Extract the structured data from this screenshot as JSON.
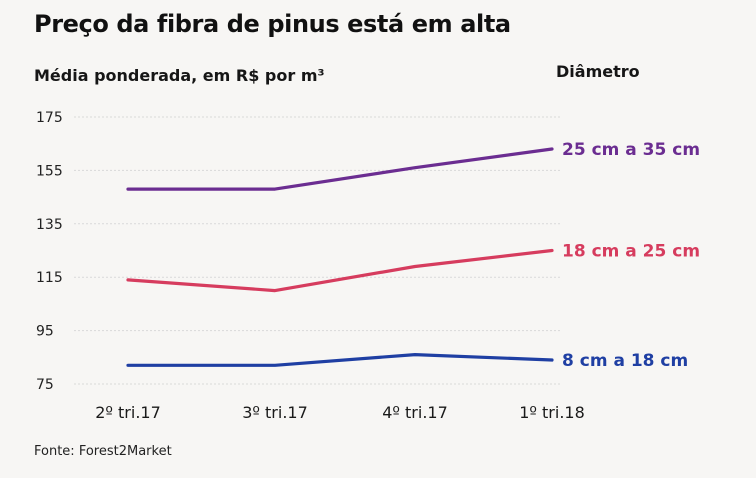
{
  "chart_data": {
    "type": "line",
    "title": "Preço da fibra de pinus está em alta",
    "subtitle": "Média ponderada, em R$ por m³",
    "legend_title": "Diâmetro",
    "source": "Fonte: Forest2Market",
    "categories": [
      "2º tri.17",
      "3º tri.17",
      "4º tri.17",
      "1º tri.18"
    ],
    "ylim": [
      75,
      175
    ],
    "yticks": [
      175,
      155,
      135,
      115,
      95,
      75
    ],
    "grid": true,
    "legend_placement": "right, at line ends",
    "series": [
      {
        "name": "25 cm a 35 cm",
        "color": "#6b2d91",
        "values": [
          148,
          148,
          156,
          163
        ]
      },
      {
        "name": "18 cm a 25 cm",
        "color": "#d63c5e",
        "values": [
          114,
          110,
          119,
          125
        ]
      },
      {
        "name": "8 cm a 18 cm",
        "color": "#1f3fa3",
        "values": [
          82,
          82,
          86,
          84
        ]
      }
    ]
  }
}
